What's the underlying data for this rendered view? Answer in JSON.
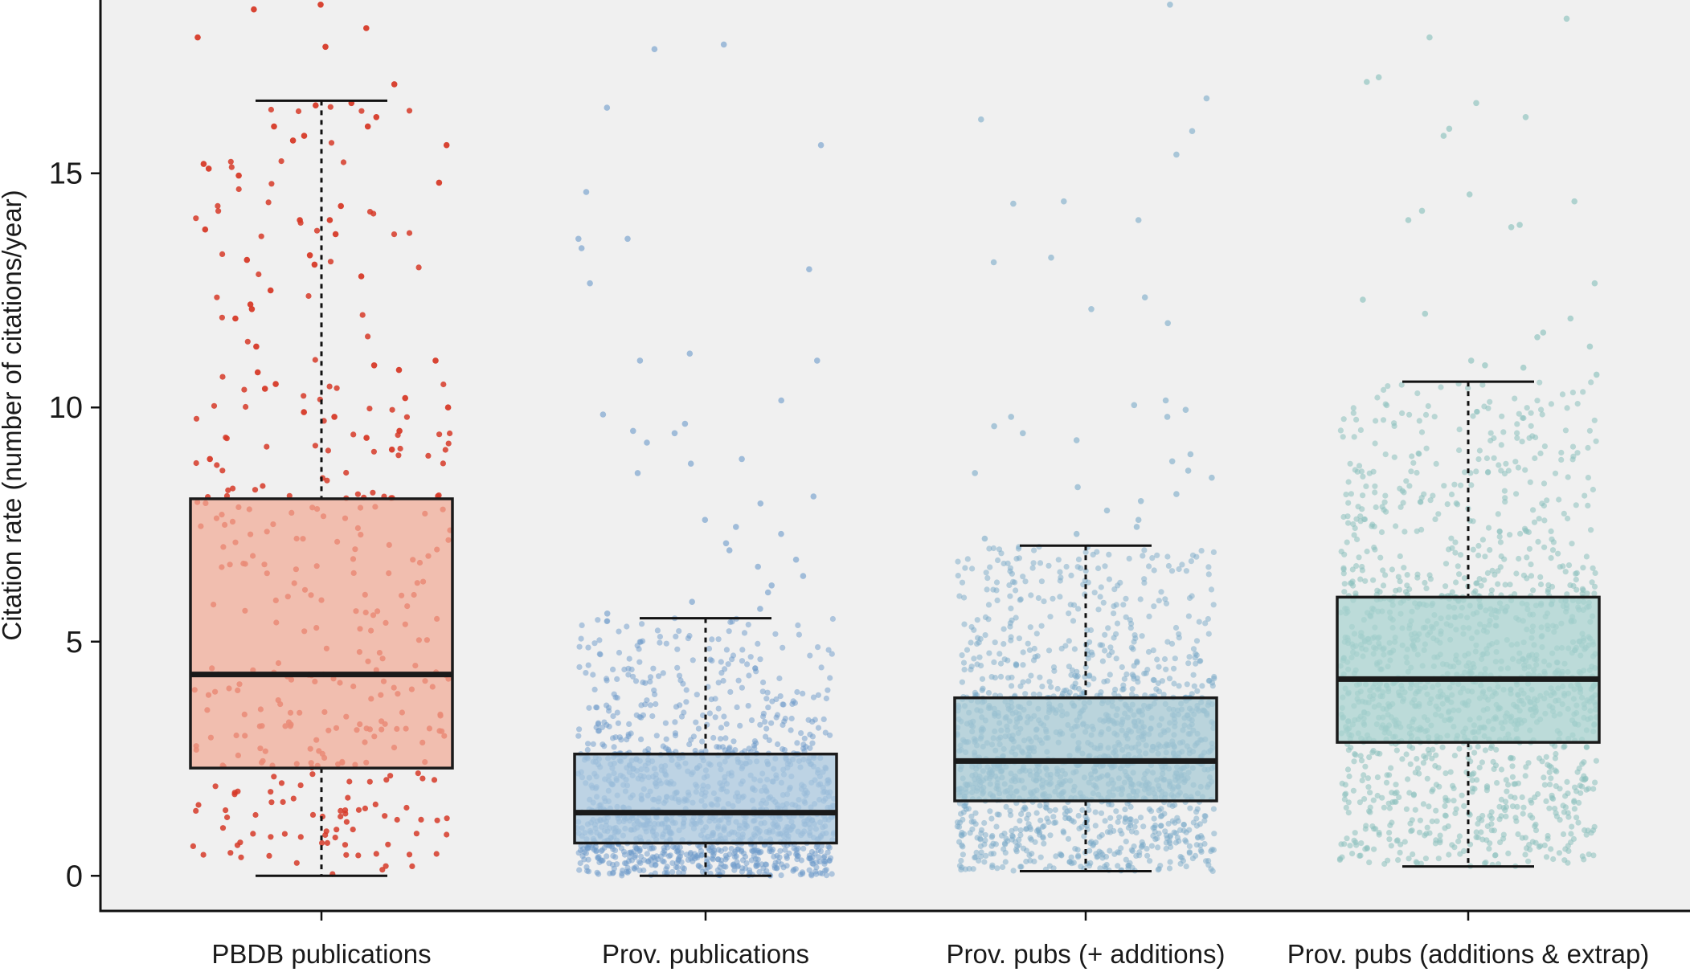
{
  "chart_data": {
    "type": "box",
    "title": "",
    "xlabel": "",
    "ylabel": "Citation rate (number of citations/year)",
    "ylim": [
      -0.75,
      18.7
    ],
    "yticks": [
      0,
      5,
      10,
      15
    ],
    "ytick_labels": [
      "0",
      "5",
      "10",
      "15"
    ],
    "grid": false,
    "legend": "none",
    "background": "#f0f0f0",
    "series": [
      {
        "category": "PBDB publications",
        "box_color": "#f1ab95",
        "point_color": "#d63a28",
        "point_opacity": 0.85,
        "point_count": 340,
        "whisker_low": 0.0,
        "q1": 2.3,
        "median": 4.3,
        "q3": 8.05,
        "whisker_high": 16.55,
        "outliers": [
          18.6,
          18.5,
          18.1,
          17.9,
          17.7,
          16.9,
          16.5,
          16.45,
          16.2,
          16.0,
          16.0,
          15.8,
          15.7,
          15.6,
          15.2,
          15.1,
          14.95,
          14.8,
          14.3,
          14.0,
          14.0,
          13.8,
          13.7,
          13.25,
          13.15,
          13.05,
          12.8,
          12.5,
          12.2,
          12.1,
          11.9,
          11.3,
          11.0,
          10.9,
          10.8,
          10.75,
          10.5,
          10.4,
          10.2,
          10.0,
          9.9,
          9.8,
          9.5,
          9.35,
          9.1,
          8.9
        ]
      },
      {
        "category": "Prov. publications",
        "box_color": "#a9c7df",
        "point_color": "#6b99c9",
        "point_opacity": 0.5,
        "point_count": 1300,
        "whisker_low": 0.0,
        "q1": 0.7,
        "median": 1.35,
        "q3": 2.6,
        "whisker_high": 5.5,
        "outliers": [
          17.75,
          17.65,
          16.4,
          15.6,
          14.6,
          13.6,
          13.6,
          13.4,
          12.95,
          12.65,
          11.15,
          11.0,
          11.0,
          10.15,
          9.85,
          9.65,
          9.5,
          9.45,
          9.25,
          8.9,
          8.8,
          8.6,
          8.1,
          7.95,
          7.6,
          7.45,
          7.3,
          7.1,
          6.95,
          6.75,
          6.6,
          6.4,
          6.2,
          6.05,
          5.85,
          5.7,
          5.6
        ]
      },
      {
        "category": "Prov. pubs (+ additions)",
        "box_color": "#a5c9d4",
        "point_color": "#7aaac8",
        "point_opacity": 0.5,
        "point_count": 1500,
        "whisker_low": 0.1,
        "q1": 1.6,
        "median": 2.45,
        "q3": 3.8,
        "whisker_high": 7.05,
        "outliers": [
          18.6,
          16.6,
          16.15,
          15.9,
          15.4,
          14.4,
          14.35,
          14.0,
          13.2,
          13.1,
          12.35,
          12.1,
          11.8,
          10.15,
          10.05,
          9.95,
          9.8,
          9.8,
          9.6,
          9.45,
          9.3,
          9.0,
          8.85,
          8.65,
          8.6,
          8.5,
          8.3,
          8.15,
          8.0,
          7.8,
          7.6,
          7.45,
          7.3,
          7.2
        ]
      },
      {
        "category": "Prov. pubs (additions & extrap)",
        "box_color": "#a7d3d0",
        "point_color": "#8cc1bd",
        "point_opacity": 0.55,
        "point_count": 1500,
        "whisker_low": 0.2,
        "q1": 2.85,
        "median": 4.2,
        "q3": 5.95,
        "whisker_high": 10.55,
        "outliers": [
          18.3,
          17.9,
          17.05,
          16.95,
          16.5,
          16.2,
          15.95,
          15.8,
          14.55,
          14.4,
          14.2,
          14.0,
          13.9,
          13.85,
          12.65,
          12.3,
          12.0,
          11.9,
          11.6,
          11.5,
          11.3,
          11.0,
          10.9,
          10.85,
          10.7
        ]
      }
    ]
  }
}
